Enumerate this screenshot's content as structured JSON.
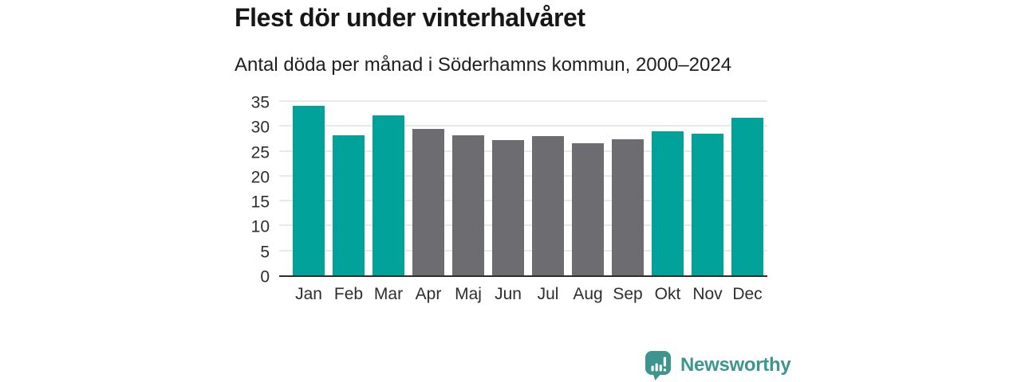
{
  "chart_data": {
    "type": "bar",
    "title": "Flest dör under vinterhalvåret",
    "subtitle": "Antal döda per månad i Söderhamns kommun, 2000–2024",
    "categories": [
      "Jan",
      "Feb",
      "Mar",
      "Apr",
      "Maj",
      "Jun",
      "Jul",
      "Aug",
      "Sep",
      "Okt",
      "Nov",
      "Dec"
    ],
    "values": [
      34.1,
      28.2,
      32.1,
      29.4,
      28.1,
      27.2,
      27.9,
      26.6,
      27.4,
      28.9,
      28.5,
      31.7
    ],
    "highlighted": [
      true,
      true,
      true,
      false,
      false,
      false,
      false,
      false,
      false,
      true,
      true,
      true
    ],
    "xlabel": "",
    "ylabel": "",
    "ylim": [
      0,
      35
    ],
    "yticks": [
      0,
      5,
      10,
      15,
      20,
      25,
      30,
      35
    ],
    "grid": "horizontal",
    "legend": "none",
    "highlight_color": "#00a29a",
    "base_color": "#6c6c71",
    "gridline_color": "#e9e9ed",
    "axis_line_color": "#2d2d2d"
  },
  "footer": {
    "brand": "Newsworthy",
    "logo_icon": "bar-chart-speech-bubble-icon",
    "brand_color": "#3c968f"
  }
}
